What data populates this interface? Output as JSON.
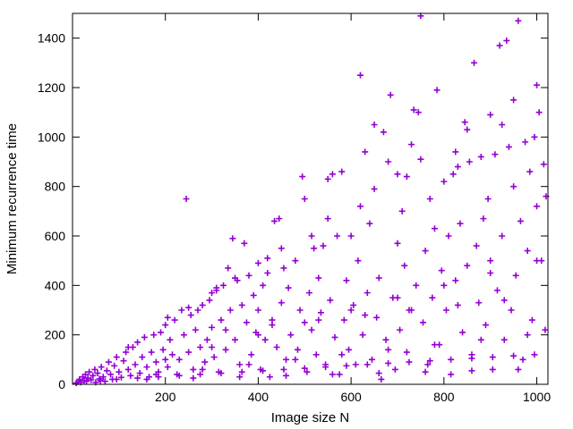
{
  "chart_data": {
    "type": "scatter",
    "title": "",
    "xlabel": "Image size N",
    "ylabel": "Minimum recurrence time",
    "xlim": [
      0,
      1024
    ],
    "ylim": [
      0,
      1500
    ],
    "x_ticks": [
      200,
      400,
      600,
      800,
      1000
    ],
    "y_ticks": [
      0,
      200,
      400,
      600,
      800,
      1000,
      1200,
      1400
    ],
    "grid": false,
    "marker": "plus",
    "color": "#9400d3",
    "series": [
      {
        "points": [
          [
            8,
            5
          ],
          [
            12,
            10
          ],
          [
            15,
            20
          ],
          [
            18,
            8
          ],
          [
            22,
            30
          ],
          [
            25,
            15
          ],
          [
            28,
            40
          ],
          [
            30,
            12
          ],
          [
            33,
            25
          ],
          [
            36,
            50
          ],
          [
            40,
            18
          ],
          [
            44,
            35
          ],
          [
            48,
            60
          ],
          [
            50,
            8
          ],
          [
            54,
            45
          ],
          [
            58,
            22
          ],
          [
            62,
            70
          ],
          [
            66,
            30
          ],
          [
            70,
            12
          ],
          [
            74,
            55
          ],
          [
            78,
            90
          ],
          [
            82,
            40
          ],
          [
            86,
            20
          ],
          [
            90,
            75
          ],
          [
            95,
            110
          ],
          [
            100,
            50
          ],
          [
            105,
            28
          ],
          [
            110,
            95
          ],
          [
            115,
            130
          ],
          [
            120,
            60
          ],
          [
            125,
            35
          ],
          [
            130,
            150
          ],
          [
            135,
            80
          ],
          [
            140,
            170
          ],
          [
            145,
            45
          ],
          [
            150,
            110
          ],
          [
            155,
            190
          ],
          [
            160,
            70
          ],
          [
            165,
            30
          ],
          [
            170,
            130
          ],
          [
            175,
            200
          ],
          [
            180,
            90
          ],
          [
            185,
            50
          ],
          [
            190,
            210
          ],
          [
            195,
            140
          ],
          [
            200,
            240
          ],
          [
            205,
            70
          ],
          [
            210,
            180
          ],
          [
            215,
            120
          ],
          [
            220,
            260
          ],
          [
            225,
            40
          ],
          [
            230,
            100
          ],
          [
            235,
            300
          ],
          [
            240,
            200
          ],
          [
            245,
            750
          ],
          [
            250,
            130
          ],
          [
            255,
            280
          ],
          [
            260,
            60
          ],
          [
            265,
            220
          ],
          [
            270,
            300
          ],
          [
            275,
            150
          ],
          [
            280,
            320
          ],
          [
            285,
            90
          ],
          [
            290,
            180
          ],
          [
            295,
            340
          ],
          [
            300,
            230
          ],
          [
            305,
            110
          ],
          [
            310,
            380
          ],
          [
            315,
            50
          ],
          [
            320,
            260
          ],
          [
            325,
            400
          ],
          [
            330,
            140
          ],
          [
            335,
            470
          ],
          [
            340,
            300
          ],
          [
            345,
            590
          ],
          [
            350,
            180
          ],
          [
            355,
            420
          ],
          [
            360,
            80
          ],
          [
            365,
            320
          ],
          [
            370,
            570
          ],
          [
            375,
            250
          ],
          [
            380,
            440
          ],
          [
            385,
            120
          ],
          [
            390,
            360
          ],
          [
            395,
            210
          ],
          [
            400,
            300
          ],
          [
            405,
            60
          ],
          [
            410,
            400
          ],
          [
            415,
            180
          ],
          [
            420,
            450
          ],
          [
            425,
            30
          ],
          [
            430,
            260
          ],
          [
            435,
            660
          ],
          [
            440,
            150
          ],
          [
            445,
            670
          ],
          [
            450,
            330
          ],
          [
            455,
            470
          ],
          [
            460,
            100
          ],
          [
            465,
            390
          ],
          [
            470,
            200
          ],
          [
            480,
            500
          ],
          [
            485,
            140
          ],
          [
            490,
            300
          ],
          [
            495,
            840
          ],
          [
            500,
            750
          ],
          [
            505,
            50
          ],
          [
            510,
            370
          ],
          [
            515,
            220
          ],
          [
            520,
            550
          ],
          [
            525,
            120
          ],
          [
            530,
            430
          ],
          [
            535,
            290
          ],
          [
            540,
            560
          ],
          [
            545,
            80
          ],
          [
            550,
            830
          ],
          [
            555,
            340
          ],
          [
            560,
            850
          ],
          [
            565,
            190
          ],
          [
            570,
            600
          ],
          [
            575,
            40
          ],
          [
            580,
            860
          ],
          [
            585,
            260
          ],
          [
            590,
            420
          ],
          [
            595,
            140
          ],
          [
            600,
            600
          ],
          [
            605,
            320
          ],
          [
            610,
            80
          ],
          [
            615,
            500
          ],
          [
            620,
            1250
          ],
          [
            625,
            200
          ],
          [
            630,
            940
          ],
          [
            635,
            370
          ],
          [
            640,
            650
          ],
          [
            645,
            100
          ],
          [
            650,
            1050
          ],
          [
            655,
            270
          ],
          [
            660,
            430
          ],
          [
            665,
            20
          ],
          [
            670,
            1020
          ],
          [
            675,
            180
          ],
          [
            680,
            900
          ],
          [
            685,
            1170
          ],
          [
            690,
            350
          ],
          [
            695,
            60
          ],
          [
            700,
            570
          ],
          [
            705,
            220
          ],
          [
            710,
            700
          ],
          [
            715,
            480
          ],
          [
            720,
            130
          ],
          [
            725,
            300
          ],
          [
            730,
            970
          ],
          [
            735,
            1110
          ],
          [
            740,
            400
          ],
          [
            745,
            1100
          ],
          [
            750,
            1490
          ],
          [
            755,
            250
          ],
          [
            760,
            540
          ],
          [
            765,
            80
          ],
          [
            770,
            750
          ],
          [
            775,
            350
          ],
          [
            780,
            630
          ],
          [
            785,
            1190
          ],
          [
            790,
            160
          ],
          [
            795,
            460
          ],
          [
            800,
            820
          ],
          [
            805,
            300
          ],
          [
            810,
            600
          ],
          [
            815,
            40
          ],
          [
            820,
            850
          ],
          [
            825,
            420
          ],
          [
            830,
            880
          ],
          [
            835,
            650
          ],
          [
            840,
            210
          ],
          [
            845,
            1060
          ],
          [
            850,
            480
          ],
          [
            855,
            900
          ],
          [
            860,
            120
          ],
          [
            865,
            1300
          ],
          [
            870,
            560
          ],
          [
            875,
            330
          ],
          [
            880,
            920
          ],
          [
            885,
            670
          ],
          [
            890,
            240
          ],
          [
            895,
            750
          ],
          [
            900,
            500
          ],
          [
            905,
            60
          ],
          [
            910,
            930
          ],
          [
            915,
            380
          ],
          [
            920,
            1370
          ],
          [
            925,
            600
          ],
          [
            930,
            180
          ],
          [
            935,
            1390
          ],
          [
            940,
            960
          ],
          [
            945,
            300
          ],
          [
            950,
            800
          ],
          [
            955,
            440
          ],
          [
            960,
            1470
          ],
          [
            965,
            660
          ],
          [
            970,
            100
          ],
          [
            975,
            980
          ],
          [
            980,
            540
          ],
          [
            985,
            860
          ],
          [
            990,
            260
          ],
          [
            995,
            1000
          ],
          [
            1000,
            720
          ],
          [
            1005,
            1100
          ],
          [
            1010,
            500
          ],
          [
            1015,
            890
          ],
          [
            1018,
            220
          ],
          [
            1020,
            760
          ],
          [
            60,
            15
          ],
          [
            95,
            20
          ],
          [
            140,
            25
          ],
          [
            185,
            30
          ],
          [
            230,
            35
          ],
          [
            275,
            40
          ],
          [
            320,
            45
          ],
          [
            365,
            50
          ],
          [
            410,
            55
          ],
          [
            455,
            60
          ],
          [
            500,
            65
          ],
          [
            545,
            70
          ],
          [
            590,
            75
          ],
          [
            635,
            80
          ],
          [
            680,
            85
          ],
          [
            725,
            90
          ],
          [
            770,
            95
          ],
          [
            815,
            100
          ],
          [
            860,
            105
          ],
          [
            905,
            110
          ],
          [
            950,
            115
          ],
          [
            995,
            120
          ],
          [
            120,
            150
          ],
          [
            250,
            310
          ],
          [
            300,
            370
          ],
          [
            350,
            430
          ],
          [
            400,
            490
          ],
          [
            450,
            550
          ],
          [
            550,
            670
          ],
          [
            650,
            790
          ],
          [
            700,
            850
          ],
          [
            750,
            910
          ],
          [
            850,
            1030
          ],
          [
            900,
            1090
          ],
          [
            950,
            1150
          ],
          [
            1000,
            1210
          ],
          [
            200,
            100
          ],
          [
            300,
            150
          ],
          [
            400,
            200
          ],
          [
            500,
            250
          ],
          [
            600,
            300
          ],
          [
            700,
            350
          ],
          [
            800,
            400
          ],
          [
            900,
            450
          ],
          [
            1000,
            500
          ],
          [
            160,
            20
          ],
          [
            260,
            25
          ],
          [
            360,
            30
          ],
          [
            460,
            35
          ],
          [
            560,
            40
          ],
          [
            660,
            45
          ],
          [
            760,
            50
          ],
          [
            860,
            55
          ],
          [
            960,
            60
          ],
          [
            180,
            40
          ],
          [
            280,
            60
          ],
          [
            380,
            80
          ],
          [
            480,
            100
          ],
          [
            580,
            120
          ],
          [
            680,
            140
          ],
          [
            780,
            160
          ],
          [
            880,
            180
          ],
          [
            980,
            200
          ],
          [
            330,
            220
          ],
          [
            430,
            240
          ],
          [
            530,
            260
          ],
          [
            630,
            280
          ],
          [
            730,
            300
          ],
          [
            830,
            320
          ],
          [
            930,
            340
          ],
          [
            205,
            270
          ],
          [
            310,
            390
          ],
          [
            420,
            510
          ],
          [
            515,
            600
          ],
          [
            620,
            720
          ],
          [
            720,
            840
          ],
          [
            825,
            940
          ],
          [
            925,
            1050
          ]
        ]
      }
    ]
  }
}
